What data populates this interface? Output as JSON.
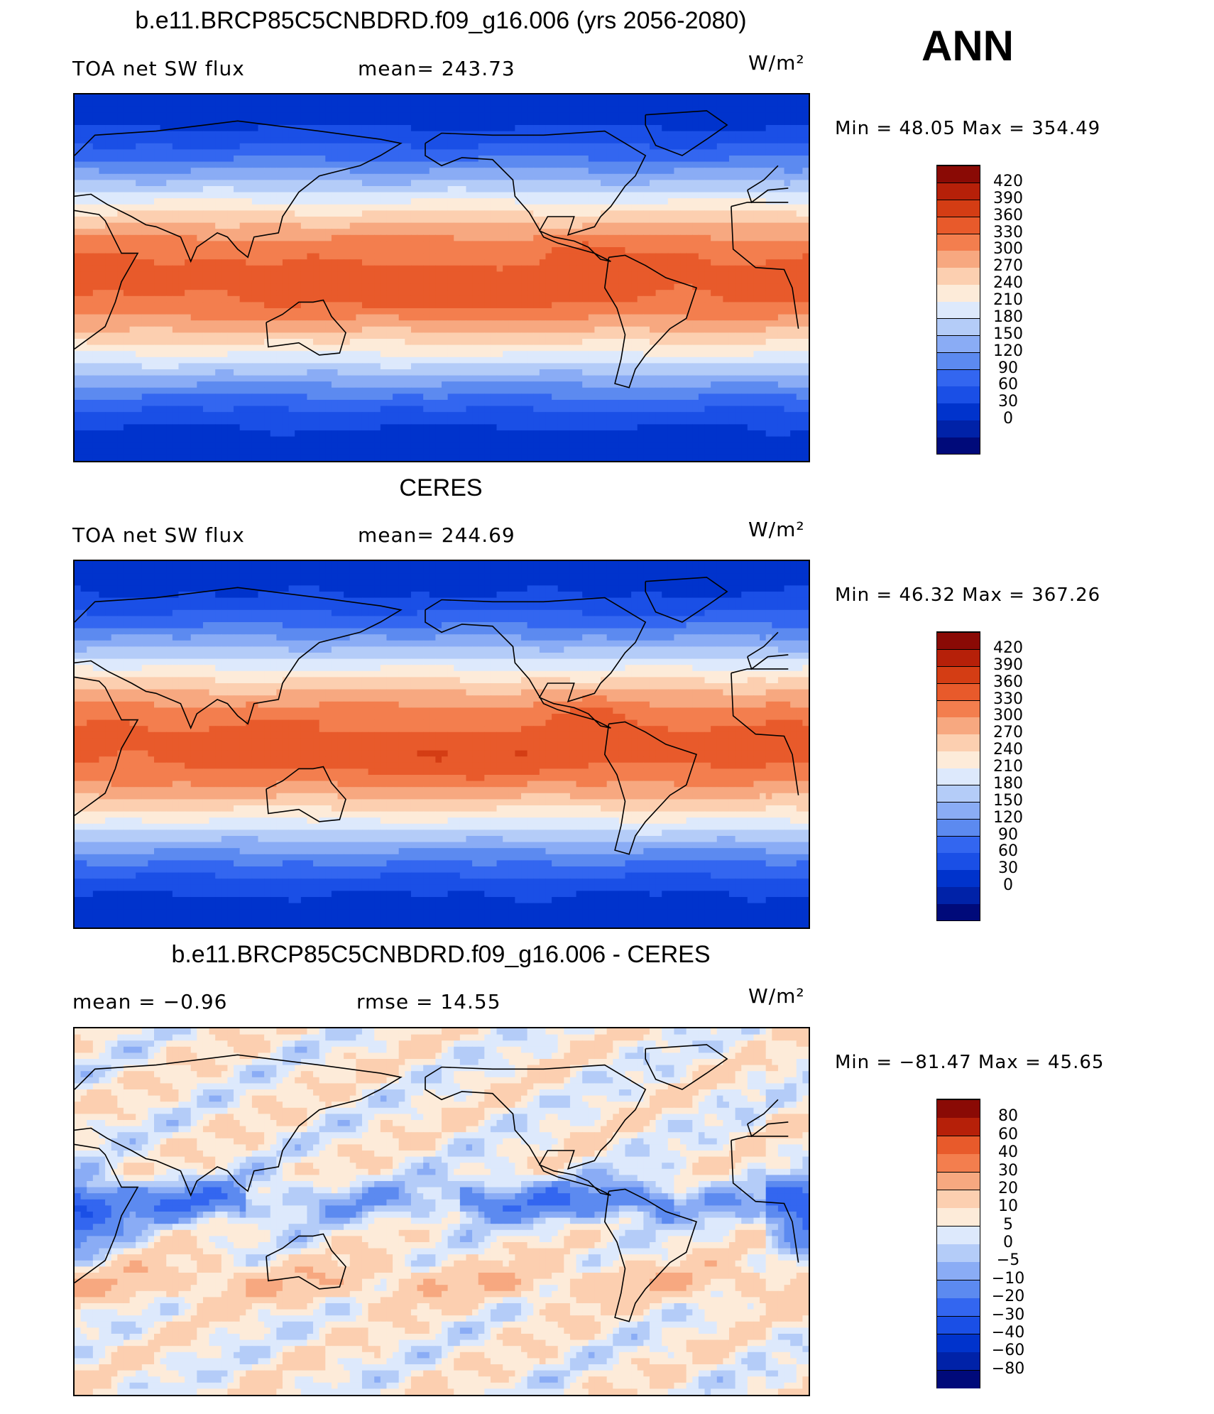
{
  "season": "ANN",
  "units": "W/m²",
  "palettes": {
    "abs": [
      "#000a7a",
      "#0022a8",
      "#0033cc",
      "#1a4fe6",
      "#3366f0",
      "#5c8af0",
      "#8aacf5",
      "#b4ccf8",
      "#dde9fc",
      "#fdebd9",
      "#fccfb0",
      "#f7a880",
      "#f37e4e",
      "#e85a2b",
      "#d43d14",
      "#b62009",
      "#8a0a05"
    ],
    "diff": [
      "#000a7a",
      "#0022a8",
      "#0033cc",
      "#1a4fe6",
      "#3366f0",
      "#5c8af0",
      "#8aacf5",
      "#b4ccf8",
      "#dde9fc",
      "#fdebd9",
      "#fccfb0",
      "#f7a880",
      "#f37e4e",
      "#e85a2b",
      "#b62009",
      "#8a0a05"
    ]
  },
  "panels": [
    {
      "id": "model",
      "title": "b.e11.BRCP85C5CNBDRD.f09_g16.006 (yrs 2056-2080)",
      "left_label": "TOA net SW flux",
      "mid_label": "mean=  243.73",
      "units": "W/m²",
      "minmax": "Min =   48.05  Max  =  354.49",
      "levels": [
        "420",
        "390",
        "360",
        "330",
        "300",
        "270",
        "240",
        "210",
        "180",
        "150",
        "120",
        "90",
        "60",
        "30",
        "0"
      ],
      "palette": "abs"
    },
    {
      "id": "obs",
      "title": "CERES",
      "left_label": "TOA net SW flux",
      "mid_label": "mean=  244.69",
      "units": "W/m²",
      "minmax": "Min =   46.32  Max  =  367.26",
      "levels": [
        "420",
        "390",
        "360",
        "330",
        "300",
        "270",
        "240",
        "210",
        "180",
        "150",
        "120",
        "90",
        "60",
        "30",
        "0"
      ],
      "palette": "abs"
    },
    {
      "id": "diff",
      "title": "b.e11.BRCP85C5CNBDRD.f09_g16.006 - CERES",
      "left_label": "mean  =    −0.96",
      "mid_label": "rmse  =    14.55",
      "units": "W/m²",
      "minmax": "Min  =  −81.47  Max  =    45.65",
      "levels": [
        "80",
        "60",
        "40",
        "30",
        "20",
        "10",
        "5",
        "0",
        "−5",
        "−10",
        "−20",
        "−30",
        "−40",
        "−60",
        "−80"
      ],
      "palette": "diff"
    }
  ]
}
